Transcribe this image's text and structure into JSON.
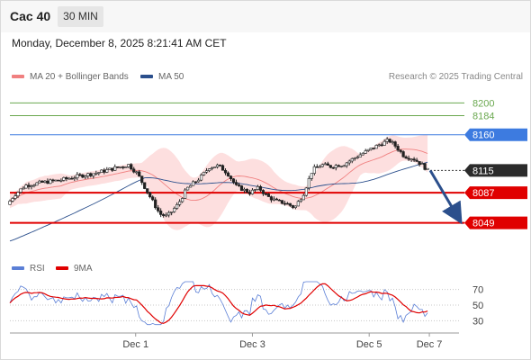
{
  "header": {
    "instrument": "Cac 40",
    "timeframe": "30 MIN"
  },
  "datetime": "Monday, December 8, 2025 8:21:41 AM CET",
  "legend": {
    "bollinger": {
      "label": "MA 20 + Bollinger Bands",
      "color": "#f08080"
    },
    "ma50": {
      "label": "MA 50",
      "color": "#2b4f8c"
    },
    "rsi": {
      "label": "RSI",
      "color": "#5b7fd6"
    },
    "rsi_ma": {
      "label": "9MA",
      "color": "#e00000"
    }
  },
  "credit": "Research © 2025 Trading Central",
  "chart_data": [
    {
      "type": "candlestick",
      "ylim": [
        8010,
        8222
      ],
      "xlim": [
        0,
        500
      ],
      "levels": [
        {
          "value": 8200,
          "label": "8200",
          "style": "target",
          "color": "#6aa84f"
        },
        {
          "value": 8184,
          "label": "8184",
          "style": "target",
          "color": "#6aa84f"
        },
        {
          "value": 8160,
          "label": "8160",
          "style": "resistance",
          "color": "#3d7be0"
        },
        {
          "value": 8115,
          "label": "8115",
          "style": "last",
          "color": "#2b2b2b"
        },
        {
          "value": 8087,
          "label": "8087",
          "style": "support",
          "color": "#e00000"
        },
        {
          "value": 8049,
          "label": "8049",
          "style": "support",
          "color": "#e00000"
        }
      ],
      "last_price": 8115,
      "forecast": {
        "from": 8115,
        "to": 8049
      },
      "bb_upper_color": "#f08080",
      "bb_fill_color": "#fdd9d9",
      "ma50_color": "#2b4f8c"
    },
    {
      "type": "line",
      "ylim": [
        20,
        80
      ],
      "ticks": [
        70,
        50,
        30
      ]
    }
  ],
  "x_axis": {
    "ticks": [
      {
        "label": "Dec 1",
        "t": 140
      },
      {
        "label": "Dec 3",
        "t": 270
      },
      {
        "label": "Dec 5",
        "t": 400
      },
      {
        "label": "Dec 7",
        "t": 467
      }
    ]
  }
}
